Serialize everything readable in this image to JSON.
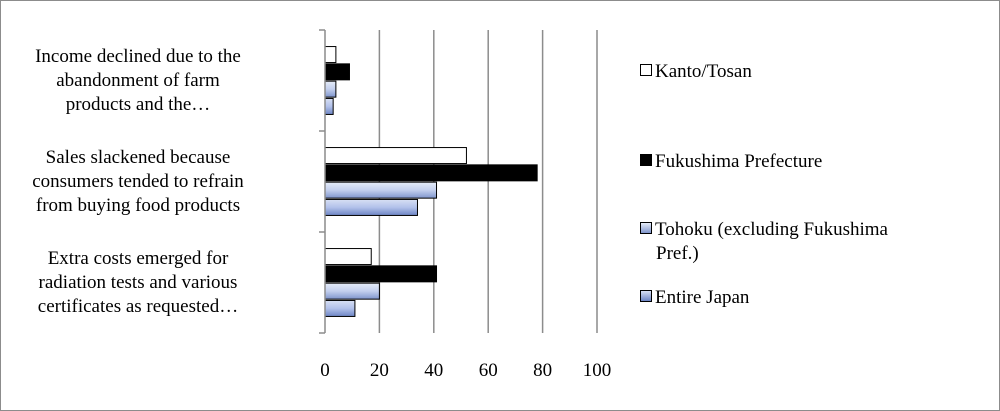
{
  "chart_data": {
    "type": "bar",
    "orientation": "horizontal",
    "categories": [
      "Income declined due to the abandonment of farm products and the…",
      "Sales slackened because consumers tended to refrain from buying food products",
      "Extra costs emerged for radiation tests and various certificates as requested…"
    ],
    "category_lines": [
      [
        "Income declined due to the",
        "abandonment of farm",
        "products and the…"
      ],
      [
        "Sales slackened because",
        "consumers tended to refrain",
        "from buying food products"
      ],
      [
        "Extra costs emerged for",
        "radiation tests and various",
        "certificates as requested…"
      ]
    ],
    "series": [
      {
        "name": "Kanto/Tosan",
        "values": [
          4,
          52,
          17
        ],
        "color": "#ffffff",
        "style": "white"
      },
      {
        "name": "Fukushima Prefecture",
        "values": [
          9,
          78,
          41
        ],
        "color": "#000000",
        "style": "black"
      },
      {
        "name": "Tohoku (excluding Fukushima Pref.)",
        "values": [
          4,
          41,
          20
        ],
        "color": "#a9b9e0",
        "style": "gradient-light"
      },
      {
        "name": "Entire Japan",
        "values": [
          3,
          34,
          11
        ],
        "color": "#8ea3d6",
        "style": "gradient-dark"
      }
    ],
    "legend_lines": [
      [
        "Kanto/Tosan"
      ],
      [
        "Fukushima Prefecture"
      ],
      [
        "Tohoku (excluding Fukushima",
        "Pref.)"
      ],
      [
        "Entire Japan"
      ]
    ],
    "xlim": [
      0,
      100
    ],
    "xticks": [
      "0",
      "20",
      "40",
      "60",
      "80",
      "100"
    ],
    "grid": true,
    "legend_position": "right"
  }
}
